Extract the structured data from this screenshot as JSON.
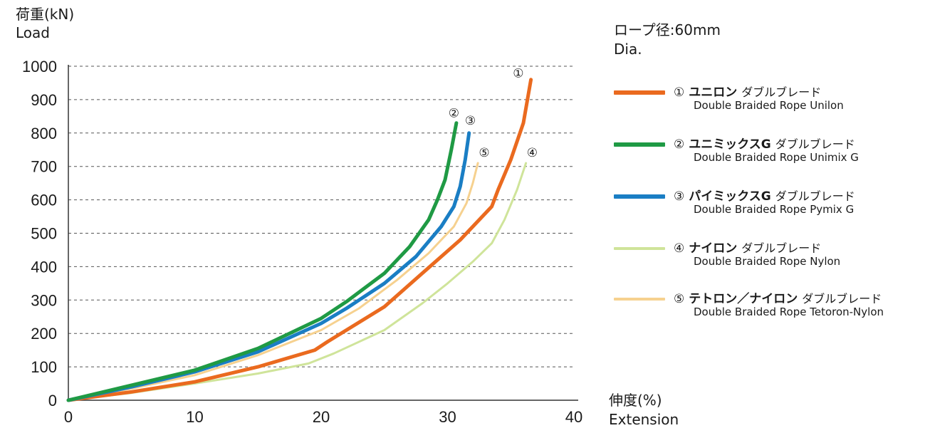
{
  "y_title": {
    "jp": "荷重(kN)",
    "en": "Load"
  },
  "x_title": {
    "jp": "伸度(%)",
    "en": "Extension"
  },
  "spec": {
    "jp": "ロープ径:60mm",
    "en": "Dia."
  },
  "legend": [
    {
      "num": "①",
      "name": "ユニロン",
      "type": "ダブルブレード",
      "en": "Double Braided Rope Unilon",
      "color": "#ea6a1f"
    },
    {
      "num": "②",
      "name": "ユニミックスG",
      "type": "ダブルブレード",
      "en": "Double Braided Rope Unimix G",
      "color": "#1f9a44"
    },
    {
      "num": "③",
      "name": "パイミックスG",
      "type": "ダブルブレード",
      "en": "Double Braided Rope Pymix G",
      "color": "#1a7ec4"
    },
    {
      "num": "④",
      "name": "ナイロン",
      "type": "ダブルブレード",
      "en": "Double Braided Rope Nylon",
      "color": "#cfe49a"
    },
    {
      "num": "⑤",
      "name": "テトロン／ナイロン",
      "type": "ダブルブレード",
      "en": "Double Braided Rope Tetoron-Nylon",
      "color": "#f6d18f"
    }
  ],
  "chart_data": {
    "type": "line",
    "xlim": [
      0,
      40
    ],
    "ylim": [
      0,
      1000
    ],
    "xticks": [
      "0",
      "10",
      "20",
      "30",
      "40"
    ],
    "yticks": [
      "0",
      "100",
      "200",
      "300",
      "400",
      "500",
      "600",
      "700",
      "800",
      "900",
      "1000"
    ],
    "grid": "horizontal-dashed",
    "series": [
      {
        "label": "①",
        "color": "#ea6a1f",
        "width": 5,
        "points": [
          [
            0,
            0
          ],
          [
            5,
            25
          ],
          [
            10,
            55
          ],
          [
            15,
            100
          ],
          [
            19.5,
            150
          ],
          [
            20.5,
            175
          ],
          [
            25,
            280
          ],
          [
            28,
            380
          ],
          [
            31,
            480
          ],
          [
            33.5,
            580
          ],
          [
            34,
            630
          ],
          [
            35,
            720
          ],
          [
            36,
            830
          ],
          [
            36.6,
            960
          ]
        ]
      },
      {
        "label": "②",
        "color": "#1f9a44",
        "width": 5,
        "points": [
          [
            0,
            0
          ],
          [
            5,
            45
          ],
          [
            10,
            90
          ],
          [
            15,
            155
          ],
          [
            20,
            245
          ],
          [
            22,
            295
          ],
          [
            25,
            380
          ],
          [
            27,
            460
          ],
          [
            28.5,
            540
          ],
          [
            29.2,
            600
          ],
          [
            29.8,
            660
          ],
          [
            30.3,
            750
          ],
          [
            30.7,
            830
          ]
        ]
      },
      {
        "label": "③",
        "color": "#1a7ec4",
        "width": 5,
        "points": [
          [
            0,
            0
          ],
          [
            5,
            40
          ],
          [
            10,
            85
          ],
          [
            15,
            145
          ],
          [
            20,
            230
          ],
          [
            22,
            275
          ],
          [
            25,
            350
          ],
          [
            27.5,
            430
          ],
          [
            29.5,
            520
          ],
          [
            30.5,
            580
          ],
          [
            31,
            640
          ],
          [
            31.4,
            720
          ],
          [
            31.7,
            800
          ]
        ]
      },
      {
        "label": "④",
        "color": "#cfe49a",
        "width": 3,
        "points": [
          [
            0,
            0
          ],
          [
            5,
            22
          ],
          [
            10,
            50
          ],
          [
            15,
            80
          ],
          [
            19,
            110
          ],
          [
            21,
            140
          ],
          [
            25,
            210
          ],
          [
            28,
            290
          ],
          [
            30,
            350
          ],
          [
            32,
            415
          ],
          [
            33.5,
            470
          ],
          [
            34.5,
            540
          ],
          [
            35.5,
            630
          ],
          [
            36.2,
            710
          ]
        ]
      },
      {
        "label": "⑤",
        "color": "#f6d18f",
        "width": 3,
        "points": [
          [
            0,
            0
          ],
          [
            5,
            35
          ],
          [
            10,
            75
          ],
          [
            15,
            135
          ],
          [
            20,
            210
          ],
          [
            23,
            275
          ],
          [
            26,
            360
          ],
          [
            28.5,
            440
          ],
          [
            30.5,
            520
          ],
          [
            31.5,
            590
          ],
          [
            32,
            650
          ],
          [
            32.4,
            710
          ]
        ]
      }
    ],
    "end_labels": [
      {
        "text": "①",
        "x": 35.6,
        "y": 980
      },
      {
        "text": "②",
        "x": 30.5,
        "y": 860
      },
      {
        "text": "③",
        "x": 31.8,
        "y": 838
      },
      {
        "text": "④",
        "x": 36.7,
        "y": 742
      },
      {
        "text": "⑤",
        "x": 32.9,
        "y": 742
      }
    ]
  }
}
